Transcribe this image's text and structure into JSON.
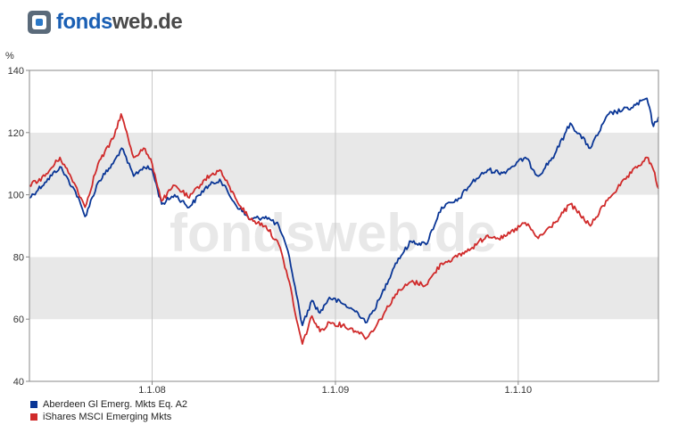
{
  "brand": {
    "name_part1": "fonds",
    "name_part2": "web.de"
  },
  "watermark": "fondsweb.de",
  "chart_data": {
    "type": "line",
    "ylabel": "%",
    "ylim": [
      40,
      140
    ],
    "yticks": [
      40,
      60,
      80,
      100,
      120,
      140
    ],
    "x_range": [
      "2007-05-01",
      "2010-10-08"
    ],
    "xticks": [
      {
        "date": "2008-01-01",
        "label": "1.1.08"
      },
      {
        "date": "2009-01-01",
        "label": "1.1.09"
      },
      {
        "date": "2010-01-01",
        "label": "1.1.10"
      }
    ],
    "legend_position": "bottom-left",
    "series": [
      {
        "name": "Aberdeen Gl Emerg. Mkts Eq. A2",
        "color": "#0a3696",
        "points": [
          [
            "2007-05-01",
            99
          ],
          [
            "2007-06-01",
            104
          ],
          [
            "2007-07-01",
            109
          ],
          [
            "2007-08-01",
            101
          ],
          [
            "2007-08-20",
            93
          ],
          [
            "2007-09-15",
            104
          ],
          [
            "2007-10-15",
            110
          ],
          [
            "2007-11-01",
            115
          ],
          [
            "2007-11-25",
            106
          ],
          [
            "2007-12-15",
            109
          ],
          [
            "2008-01-01",
            108
          ],
          [
            "2008-01-20",
            97
          ],
          [
            "2008-02-15",
            100
          ],
          [
            "2008-03-15",
            96
          ],
          [
            "2008-04-15",
            102
          ],
          [
            "2008-05-15",
            105
          ],
          [
            "2008-06-15",
            97
          ],
          [
            "2008-07-15",
            92
          ],
          [
            "2008-08-15",
            93
          ],
          [
            "2008-09-10",
            90
          ],
          [
            "2008-10-01",
            80
          ],
          [
            "2008-10-15",
            68
          ],
          [
            "2008-10-27",
            58
          ],
          [
            "2008-11-15",
            66
          ],
          [
            "2008-12-01",
            62
          ],
          [
            "2008-12-20",
            67
          ],
          [
            "2009-01-15",
            65
          ],
          [
            "2009-02-15",
            62
          ],
          [
            "2009-03-05",
            59
          ],
          [
            "2009-04-01",
            67
          ],
          [
            "2009-05-01",
            78
          ],
          [
            "2009-06-01",
            85
          ],
          [
            "2009-07-01",
            84
          ],
          [
            "2009-08-01",
            96
          ],
          [
            "2009-09-01",
            98
          ],
          [
            "2009-10-01",
            104
          ],
          [
            "2009-11-01",
            108
          ],
          [
            "2009-12-01",
            107
          ],
          [
            "2010-01-15",
            112
          ],
          [
            "2010-02-10",
            106
          ],
          [
            "2010-03-15",
            113
          ],
          [
            "2010-04-15",
            123
          ],
          [
            "2010-05-25",
            115
          ],
          [
            "2010-07-01",
            126
          ],
          [
            "2010-08-15",
            128
          ],
          [
            "2010-09-15",
            131
          ],
          [
            "2010-09-28",
            122
          ],
          [
            "2010-10-08",
            125
          ]
        ]
      },
      {
        "name": "iShares MSCI Emerging Mkts",
        "color": "#d02a2a",
        "points": [
          [
            "2007-05-01",
            103
          ],
          [
            "2007-06-01",
            106
          ],
          [
            "2007-07-01",
            112
          ],
          [
            "2007-08-01",
            103
          ],
          [
            "2007-08-20",
            96
          ],
          [
            "2007-09-15",
            110
          ],
          [
            "2007-10-15",
            118
          ],
          [
            "2007-10-31",
            126
          ],
          [
            "2007-11-25",
            112
          ],
          [
            "2007-12-15",
            115
          ],
          [
            "2008-01-01",
            110
          ],
          [
            "2008-01-20",
            98
          ],
          [
            "2008-02-15",
            103
          ],
          [
            "2008-03-15",
            99
          ],
          [
            "2008-04-15",
            105
          ],
          [
            "2008-05-15",
            108
          ],
          [
            "2008-06-15",
            99
          ],
          [
            "2008-07-15",
            92
          ],
          [
            "2008-08-15",
            90
          ],
          [
            "2008-09-10",
            84
          ],
          [
            "2008-10-01",
            72
          ],
          [
            "2008-10-15",
            60
          ],
          [
            "2008-10-27",
            52
          ],
          [
            "2008-11-15",
            61
          ],
          [
            "2008-12-01",
            56
          ],
          [
            "2008-12-20",
            59
          ],
          [
            "2009-01-15",
            58
          ],
          [
            "2009-02-15",
            56
          ],
          [
            "2009-03-05",
            54
          ],
          [
            "2009-04-01",
            60
          ],
          [
            "2009-05-01",
            68
          ],
          [
            "2009-06-01",
            72
          ],
          [
            "2009-07-01",
            71
          ],
          [
            "2009-08-01",
            78
          ],
          [
            "2009-09-01",
            80
          ],
          [
            "2009-10-01",
            83
          ],
          [
            "2009-11-01",
            87
          ],
          [
            "2009-12-01",
            86
          ],
          [
            "2010-01-15",
            91
          ],
          [
            "2010-02-10",
            86
          ],
          [
            "2010-03-15",
            91
          ],
          [
            "2010-04-15",
            97
          ],
          [
            "2010-05-25",
            90
          ],
          [
            "2010-07-01",
            99
          ],
          [
            "2010-08-15",
            107
          ],
          [
            "2010-09-15",
            112
          ],
          [
            "2010-09-28",
            108
          ],
          [
            "2010-10-08",
            102
          ]
        ]
      }
    ]
  }
}
